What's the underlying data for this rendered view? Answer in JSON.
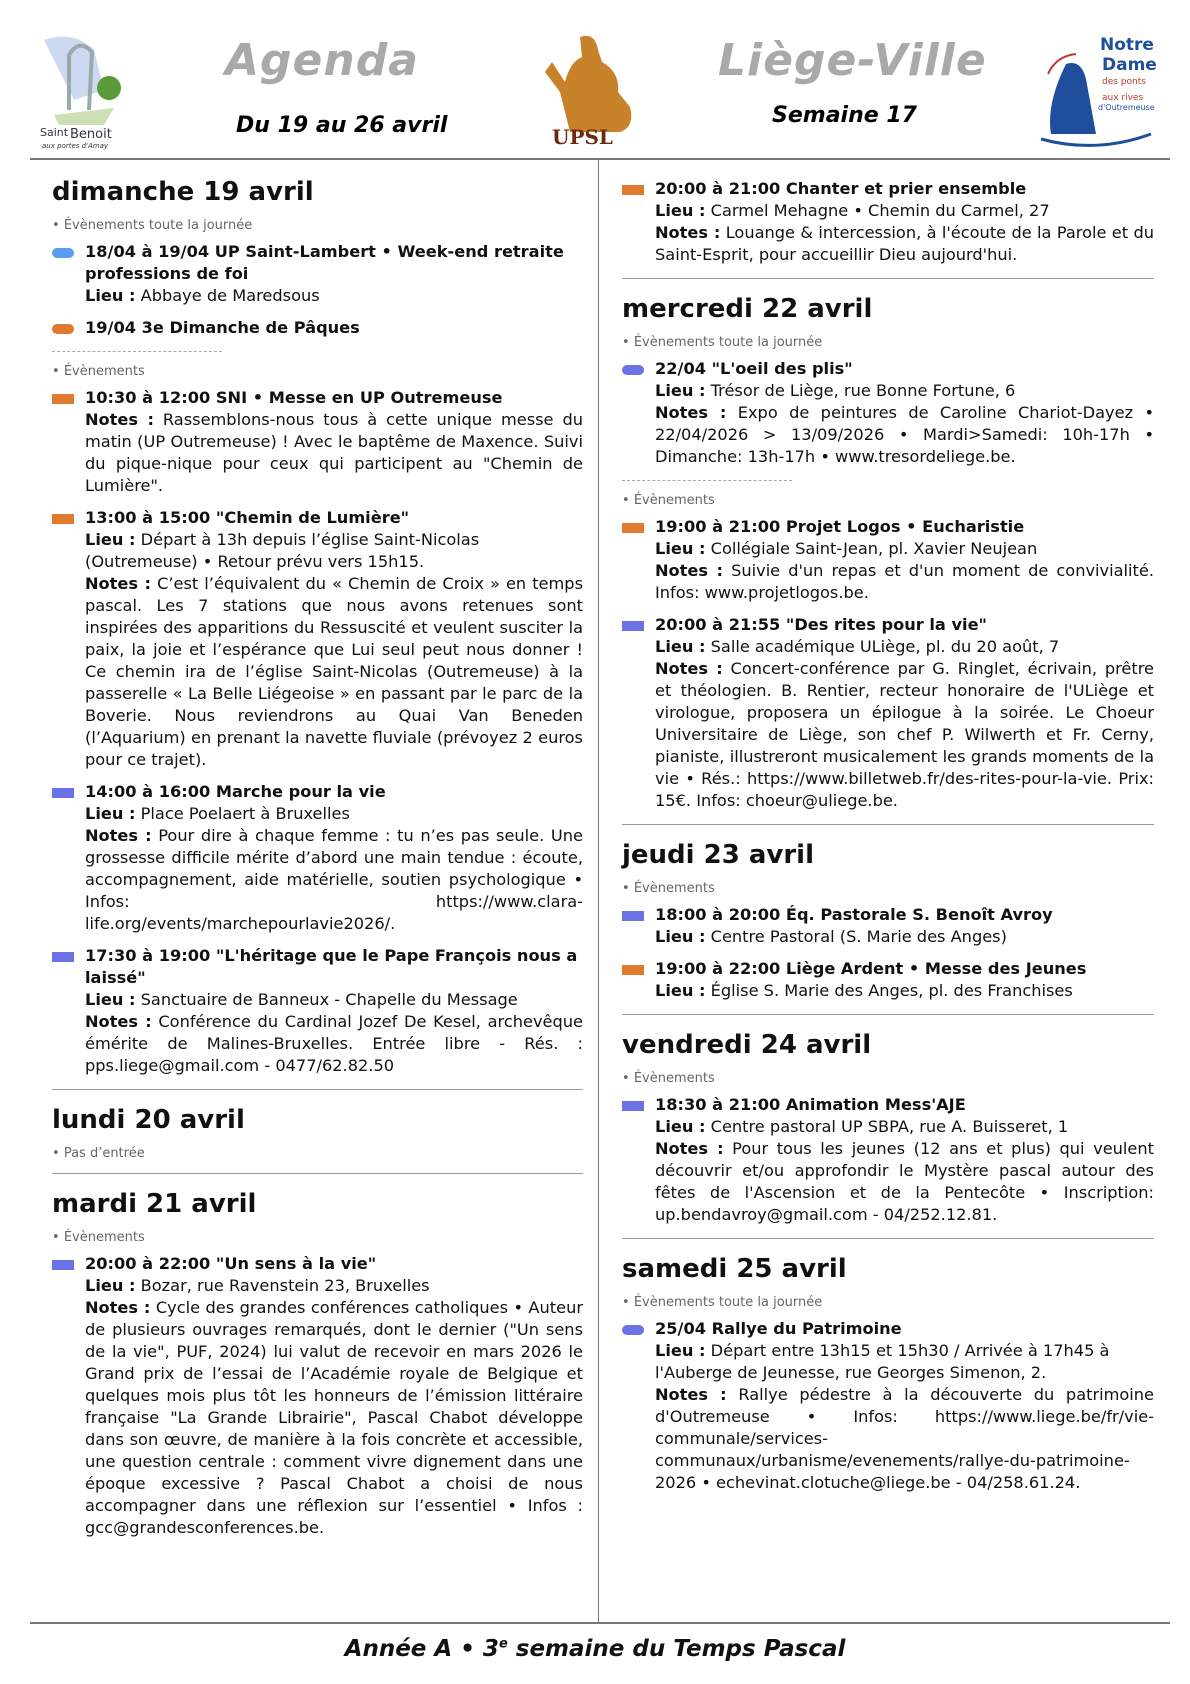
{
  "header": {
    "title_left": "Agenda",
    "title_right": "Liège-Ville",
    "date_range": "Du 19 au 26 avril",
    "week": "Semaine 17",
    "logo_left_text": "Saint Benoît aux portes d'Amay",
    "logo_center_text": "UPSL",
    "logo_right_text": "Notre Dame des ponts aux rives d'Outremeuse"
  },
  "colors": {
    "blue": "#5a9cf0",
    "orange": "#e07a2e",
    "purple": "#6b72e8"
  },
  "columns": [
    [
      {
        "day": "dimanche 19 avril",
        "sections": [
          {
            "label": "Évènements toute la journée",
            "dashed_after": true,
            "events": [
              {
                "color": "blue",
                "shape": "pill",
                "title": "18/04 à 19/04 UP Saint-Lambert • Week-end retraite professions de foi",
                "lieu_label": "Lieu :",
                "lieu": "Abbaye de Maredsous"
              },
              {
                "color": "orange",
                "shape": "pill",
                "title": "19/04 3e Dimanche de Pâques"
              }
            ]
          },
          {
            "label": "Évènements",
            "events": [
              {
                "color": "orange",
                "shape": "rect",
                "title": "10:30 à 12:00 SNI • Messe en UP Outremeuse",
                "notes_label": "Notes :",
                "notes": "Rassemblons-nous tous à cette unique messe du matin (UP Outremeuse) ! Avec le baptême de Maxence. Suivi du pique-nique pour ceux qui participent au \"Chemin de Lumière\"."
              },
              {
                "color": "orange",
                "shape": "rect",
                "title": "13:00 à 15:00 \"Chemin de Lumière\"",
                "lieu_label": "Lieu :",
                "lieu": "Départ à 13h depuis l’église Saint-Nicolas (Outremeuse) • Retour prévu vers 15h15.",
                "notes_label": "Notes :",
                "notes": "C’est l’équivalent du « Chemin de Croix » en temps pascal. Les 7 stations que nous avons retenues sont inspirées des apparitions du Ressuscité et veulent susciter la paix, la joie et l’espérance que Lui seul peut nous donner ! Ce chemin ira de l’église Saint-Nicolas (Outremeuse) à la passerelle « La Belle Liégeoise » en passant par le parc de la Boverie. Nous reviendrons au Quai Van Beneden (l’Aquarium) en prenant la navette fluviale (prévoyez 2 euros pour ce trajet)."
              },
              {
                "color": "purple",
                "shape": "rect",
                "title": "14:00 à 16:00 Marche pour la vie",
                "lieu_label": "Lieu :",
                "lieu": "Place Poelaert à Bruxelles",
                "notes_label": "Notes :",
                "notes": "Pour dire à chaque femme : tu n’es pas seule. Une grossesse difficile mérite d’abord une main tendue : écoute, accompagnement, aide matérielle, soutien psychologique • Infos: https://www.clara-life.org/events/marchepourlavie2026/."
              },
              {
                "color": "purple",
                "shape": "rect",
                "title": "17:30 à 19:00 \"L'héritage que le Pape François nous a laissé\"",
                "lieu_label": "Lieu :",
                "lieu": "Sanctuaire de Banneux - Chapelle du Message",
                "notes_label": "Notes :",
                "notes": "Conférence du Cardinal Jozef De Kesel, archevêque émérite de Malines-Bruxelles. Entrée libre - Rés. : pps.liege@gmail.com - 0477/62.82.50"
              }
            ]
          }
        ]
      },
      {
        "day": "lundi 20 avril",
        "sections": [
          {
            "label": "Pas d’entrée",
            "events": []
          }
        ]
      },
      {
        "day": "mardi 21 avril",
        "last": true,
        "sections": [
          {
            "label": "Évènements",
            "events": [
              {
                "color": "purple",
                "shape": "rect",
                "title": "20:00 à 22:00 \"Un sens à la vie\"",
                "lieu_label": "Lieu :",
                "lieu": "Bozar, rue Ravenstein 23, Bruxelles",
                "notes_label": "Notes :",
                "notes": "Cycle des grandes conférences catholiques • Auteur de plusieurs ouvrages remarqués, dont le dernier (\"Un sens de la vie\", PUF, 2024) lui valut de recevoir en mars 2026 le Grand prix de l’essai de l’Académie royale de Belgique et quelques mois plus tôt les honneurs de l’émission littéraire française \"La Grande Librairie\", Pascal Chabot développe dans son œuvre, de manière à la fois concrète et accessible, une question centrale : comment vivre dignement dans une époque excessive ? Pascal Chabot a choisi de nous accompagner dans une réflexion sur l’essentiel • Infos : gcc@grandesconferences.be."
              }
            ]
          }
        ]
      }
    ],
    [
      {
        "day": "",
        "sections": [
          {
            "label": "",
            "events": [
              {
                "color": "orange",
                "shape": "rect",
                "title": "20:00 à 21:00 Chanter et prier ensemble",
                "lieu_label": "Lieu :",
                "lieu": "Carmel Mehagne • Chemin du Carmel, 27",
                "notes_label": "Notes :",
                "notes": "Louange & intercession, à l'écoute de la Parole et du Saint-Esprit, pour accueillir Dieu aujourd'hui."
              }
            ]
          }
        ]
      },
      {
        "day": "mercredi 22 avril",
        "sections": [
          {
            "label": "Évènements toute la journée",
            "dashed_after": true,
            "events": [
              {
                "color": "purple",
                "shape": "pill",
                "title": "22/04 \"L'oeil des plis\"",
                "lieu_label": "Lieu :",
                "lieu": "Trésor de Liège, rue Bonne Fortune, 6",
                "notes_label": "Notes :",
                "notes": "Expo de peintures de Caroline Chariot-Dayez • 22/04/2026 > 13/09/2026 • Mardi>Samedi: 10h-17h • Dimanche: 13h-17h • www.tresordeliege.be."
              }
            ]
          },
          {
            "label": "Évènements",
            "events": [
              {
                "color": "orange",
                "shape": "rect",
                "title": "19:00 à 21:00 Projet Logos • Eucharistie",
                "lieu_label": "Lieu :",
                "lieu": "Collégiale Saint-Jean, pl. Xavier Neujean",
                "notes_label": "Notes :",
                "notes": "Suivie d'un repas et d'un moment de convivialité. Infos: www.projetlogos.be."
              },
              {
                "color": "purple",
                "shape": "rect",
                "title": "20:00 à 21:55 \"Des rites pour la vie\"",
                "lieu_label": "Lieu :",
                "lieu": "Salle académique ULiège, pl. du 20 août, 7",
                "notes_label": "Notes :",
                "notes": "Concert-conférence par G. Ringlet, écrivain, prêtre et théologien. B. Rentier, recteur honoraire de l'ULiège et virologue, proposera un épilogue à la soirée. Le Choeur Universitaire de Liège, son chef P. Wilwerth et Fr. Cerny, pianiste, illustreront musicalement les grands moments de la vie • Rés.: https://www.billetweb.fr/des-rites-pour-la-vie. Prix: 15€. Infos: choeur@uliege.be."
              }
            ]
          }
        ]
      },
      {
        "day": "jeudi 23 avril",
        "sections": [
          {
            "label": "Évènements",
            "events": [
              {
                "color": "purple",
                "shape": "rect",
                "title": "18:00 à 20:00 Éq. Pastorale S. Benoît Avroy",
                "lieu_label": "Lieu :",
                "lieu": "Centre Pastoral (S. Marie des Anges)"
              },
              {
                "color": "orange",
                "shape": "rect",
                "title": "19:00 à 22:00 Liège Ardent • Messe des Jeunes",
                "lieu_label": "Lieu :",
                "lieu": "Église S. Marie des Anges, pl. des Franchises"
              }
            ]
          }
        ]
      },
      {
        "day": "vendredi 24 avril",
        "sections": [
          {
            "label": "Évènements",
            "events": [
              {
                "color": "purple",
                "shape": "rect",
                "title": "18:30 à 21:00 Animation Mess'AJE",
                "lieu_label": "Lieu :",
                "lieu": "Centre pastoral UP SBPA, rue A. Buisseret, 1",
                "notes_label": "Notes :",
                "notes": "Pour tous les jeunes (12 ans et plus) qui veulent découvrir et/ou approfondir le Mystère pascal autour des fêtes de l'Ascension et de la Pentecôte • Inscription: up.bendavroy@gmail.com - 04/252.12.81."
              }
            ]
          }
        ]
      },
      {
        "day": "samedi 25 avril",
        "last": true,
        "sections": [
          {
            "label": "Évènements toute la journée",
            "events": [
              {
                "color": "purple",
                "shape": "pill",
                "title": "25/04 Rallye du Patrimoine",
                "lieu_label": "Lieu :",
                "lieu": "Départ entre 13h15 et 15h30 / Arrivée à 17h45 à l'Auberge de Jeunesse, rue Georges Simenon, 2.",
                "notes_label": "Notes :",
                "notes": "Rallye pédestre à la découverte du patrimoine d'Outremeuse • Infos: https://www.liege.be/fr/vie-communale/services-communaux/urbanisme/evenements/rallye-du-patrimoine-2026 • echevinat.clotuche@liege.be - 04/258.61.24."
              }
            ]
          }
        ]
      }
    ]
  ],
  "footer": {
    "part1": "Année A  •  3",
    "sup": "e",
    "part2": " semaine du Temps Pascal"
  }
}
